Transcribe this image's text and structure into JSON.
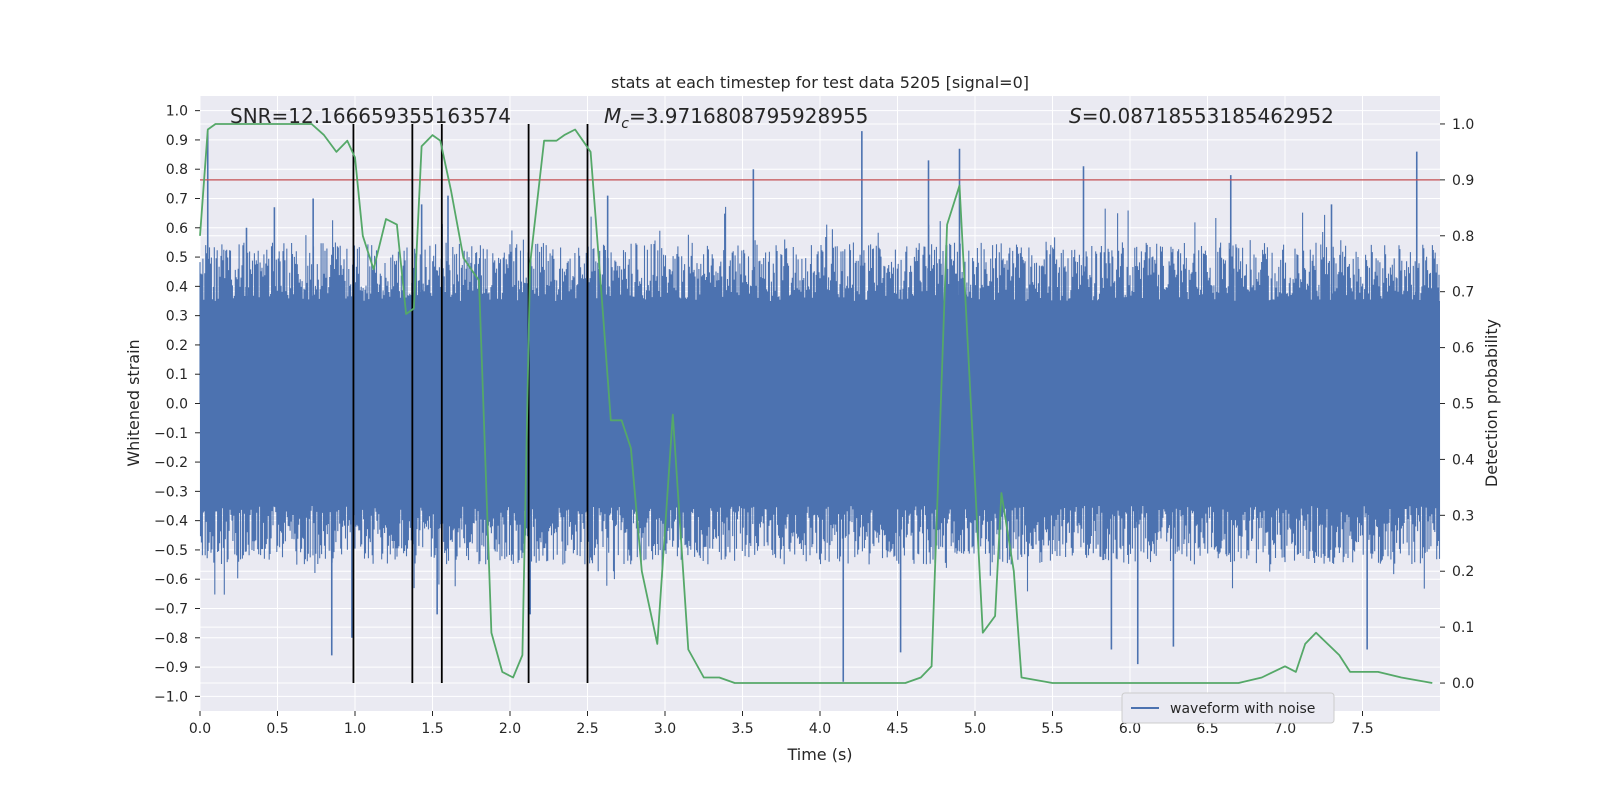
{
  "chart_data": {
    "type": "line",
    "title": "stats at each timestep for test data 5205 [signal=0]",
    "xlabel": "Time (s)",
    "ylabel_left": "Whitened strain",
    "ylabel_right": "Detection probability",
    "xlim": [
      0,
      8
    ],
    "ylim_left": [
      -1.05,
      1.05
    ],
    "ylim_right": [
      -0.05,
      1.05
    ],
    "x_ticks": [
      "0.0",
      "0.5",
      "1.0",
      "1.5",
      "2.0",
      "2.5",
      "3.0",
      "3.5",
      "4.0",
      "4.5",
      "5.0",
      "5.5",
      "6.0",
      "6.5",
      "7.0",
      "7.5"
    ],
    "y_ticks_left": [
      "1.0",
      "0.9",
      "0.8",
      "0.7",
      "0.6",
      "0.5",
      "0.4",
      "0.3",
      "0.2",
      "0.1",
      "0.0",
      "-0.1",
      "-0.2",
      "-0.3",
      "-0.4",
      "-0.5",
      "-0.6",
      "-0.7",
      "-0.8",
      "-0.9",
      "-1.0"
    ],
    "y_ticks_right": [
      "1.0",
      "0.9",
      "0.8",
      "0.7",
      "0.6",
      "0.5",
      "0.4",
      "0.3",
      "0.2",
      "0.1",
      "0.0"
    ],
    "grid": true,
    "annotations": {
      "snr": "SNR=12.166659355163574",
      "mc": "=3.9716808795928955",
      "s": "=0.08718553185462952"
    },
    "legend": {
      "placement": "lower-right",
      "entries": [
        {
          "label": "waveform with noise",
          "color": "#4c72b0"
        }
      ]
    },
    "threshold": {
      "value": 0.9,
      "axis": "right",
      "color": "#c44e52"
    },
    "vlines": [
      0.99,
      1.37,
      1.56,
      2.12,
      2.5
    ],
    "vline_range_right": [
      0.0,
      1.0
    ],
    "noise": {
      "name": "waveform with noise",
      "color": "#4c72b0",
      "band": 0.35,
      "typical_peak": 0.55,
      "spikes": [
        {
          "x": 0.05,
          "y": 0.93
        },
        {
          "x": 0.3,
          "y": 0.6
        },
        {
          "x": 0.48,
          "y": 0.67
        },
        {
          "x": 0.73,
          "y": 0.7
        },
        {
          "x": 0.85,
          "y": -0.86
        },
        {
          "x": 0.98,
          "y": -0.8
        },
        {
          "x": 1.43,
          "y": 0.68
        },
        {
          "x": 1.53,
          "y": -0.72
        },
        {
          "x": 1.6,
          "y": 0.71
        },
        {
          "x": 2.13,
          "y": -0.72
        },
        {
          "x": 2.63,
          "y": 0.71
        },
        {
          "x": 3.57,
          "y": 0.8
        },
        {
          "x": 4.15,
          "y": -0.95
        },
        {
          "x": 4.27,
          "y": 0.93
        },
        {
          "x": 4.52,
          "y": -0.85
        },
        {
          "x": 4.7,
          "y": 0.83
        },
        {
          "x": 4.9,
          "y": 0.87
        },
        {
          "x": 5.7,
          "y": 0.81
        },
        {
          "x": 5.88,
          "y": -0.84
        },
        {
          "x": 6.05,
          "y": -0.89
        },
        {
          "x": 6.28,
          "y": -0.83
        },
        {
          "x": 6.65,
          "y": 0.78
        },
        {
          "x": 7.3,
          "y": 0.68
        },
        {
          "x": 7.53,
          "y": -0.84
        },
        {
          "x": 7.85,
          "y": 0.86
        }
      ]
    },
    "probability": {
      "color": "#55a868",
      "x": [
        0.0,
        0.05,
        0.1,
        0.15,
        0.3,
        0.5,
        0.72,
        0.8,
        0.88,
        0.95,
        1.0,
        1.05,
        1.12,
        1.2,
        1.27,
        1.33,
        1.38,
        1.43,
        1.5,
        1.55,
        1.62,
        1.7,
        1.8,
        1.88,
        1.95,
        2.02,
        2.08,
        2.13,
        2.22,
        2.3,
        2.35,
        2.42,
        2.47,
        2.52,
        2.6,
        2.65,
        2.72,
        2.78,
        2.85,
        2.95,
        3.05,
        3.15,
        3.25,
        3.35,
        3.45,
        3.6,
        3.8,
        4.0,
        4.2,
        4.4,
        4.55,
        4.65,
        4.72,
        4.82,
        4.9,
        4.97,
        5.05,
        5.13,
        5.17,
        5.25,
        5.3,
        5.5,
        5.75,
        6.0,
        6.5,
        6.7,
        6.85,
        7.0,
        7.07,
        7.13,
        7.2,
        7.35,
        7.42,
        7.5,
        7.6,
        7.75,
        7.95
      ],
      "y": [
        0.8,
        0.99,
        1.0,
        1.0,
        1.0,
        1.0,
        1.0,
        0.98,
        0.95,
        0.97,
        0.94,
        0.8,
        0.74,
        0.83,
        0.82,
        0.66,
        0.67,
        0.96,
        0.98,
        0.97,
        0.88,
        0.76,
        0.72,
        0.09,
        0.02,
        0.01,
        0.05,
        0.75,
        0.97,
        0.97,
        0.98,
        0.99,
        0.97,
        0.95,
        0.66,
        0.47,
        0.47,
        0.42,
        0.2,
        0.07,
        0.48,
        0.06,
        0.01,
        0.01,
        0.0,
        0.0,
        0.0,
        0.0,
        0.0,
        0.0,
        0.0,
        0.01,
        0.03,
        0.82,
        0.89,
        0.52,
        0.09,
        0.12,
        0.34,
        0.2,
        0.01,
        0.0,
        0.0,
        0.0,
        0.0,
        0.0,
        0.01,
        0.03,
        0.02,
        0.07,
        0.09,
        0.05,
        0.02,
        0.02,
        0.02,
        0.01,
        0.0
      ]
    }
  }
}
